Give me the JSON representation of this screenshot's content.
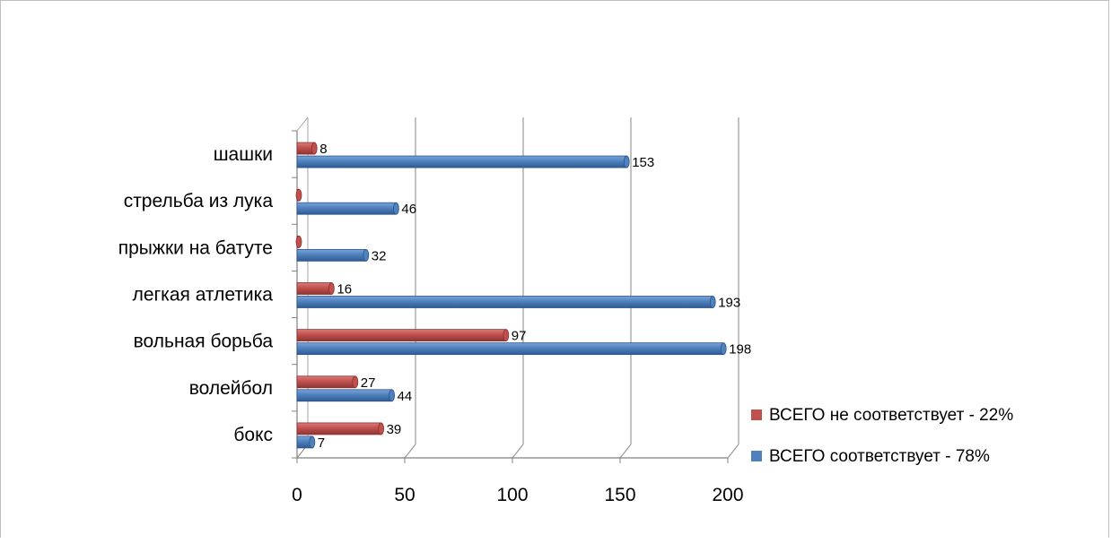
{
  "chart_data": {
    "type": "bar",
    "orientation": "horizontal",
    "style": "3d-clustered",
    "title": "",
    "categories": [
      "бокс",
      "волейбол",
      "вольная борьба",
      "легкая атлетика",
      "прыжки на батуте",
      "стрельба из лука",
      "шашки"
    ],
    "series": [
      {
        "name": "ВСЕГО соответствует - 78%",
        "color": "#4f81bd",
        "values": [
          7,
          44,
          198,
          193,
          32,
          46,
          153
        ],
        "labels": [
          "7",
          "44",
          "198",
          "193",
          "32",
          "46",
          "153"
        ]
      },
      {
        "name": "ВСЕГО не соответствует  - 22%",
        "color": "#c0504d",
        "values": [
          39,
          27,
          97,
          16,
          0,
          0,
          8
        ],
        "labels": [
          "39",
          "27",
          "97",
          "16",
          "",
          "",
          "8"
        ]
      }
    ],
    "x_ticks": [
      "0",
      "50",
      "100",
      "150",
      "200"
    ],
    "xlim": [
      0,
      200
    ],
    "grid": true,
    "legend_position": "right"
  }
}
